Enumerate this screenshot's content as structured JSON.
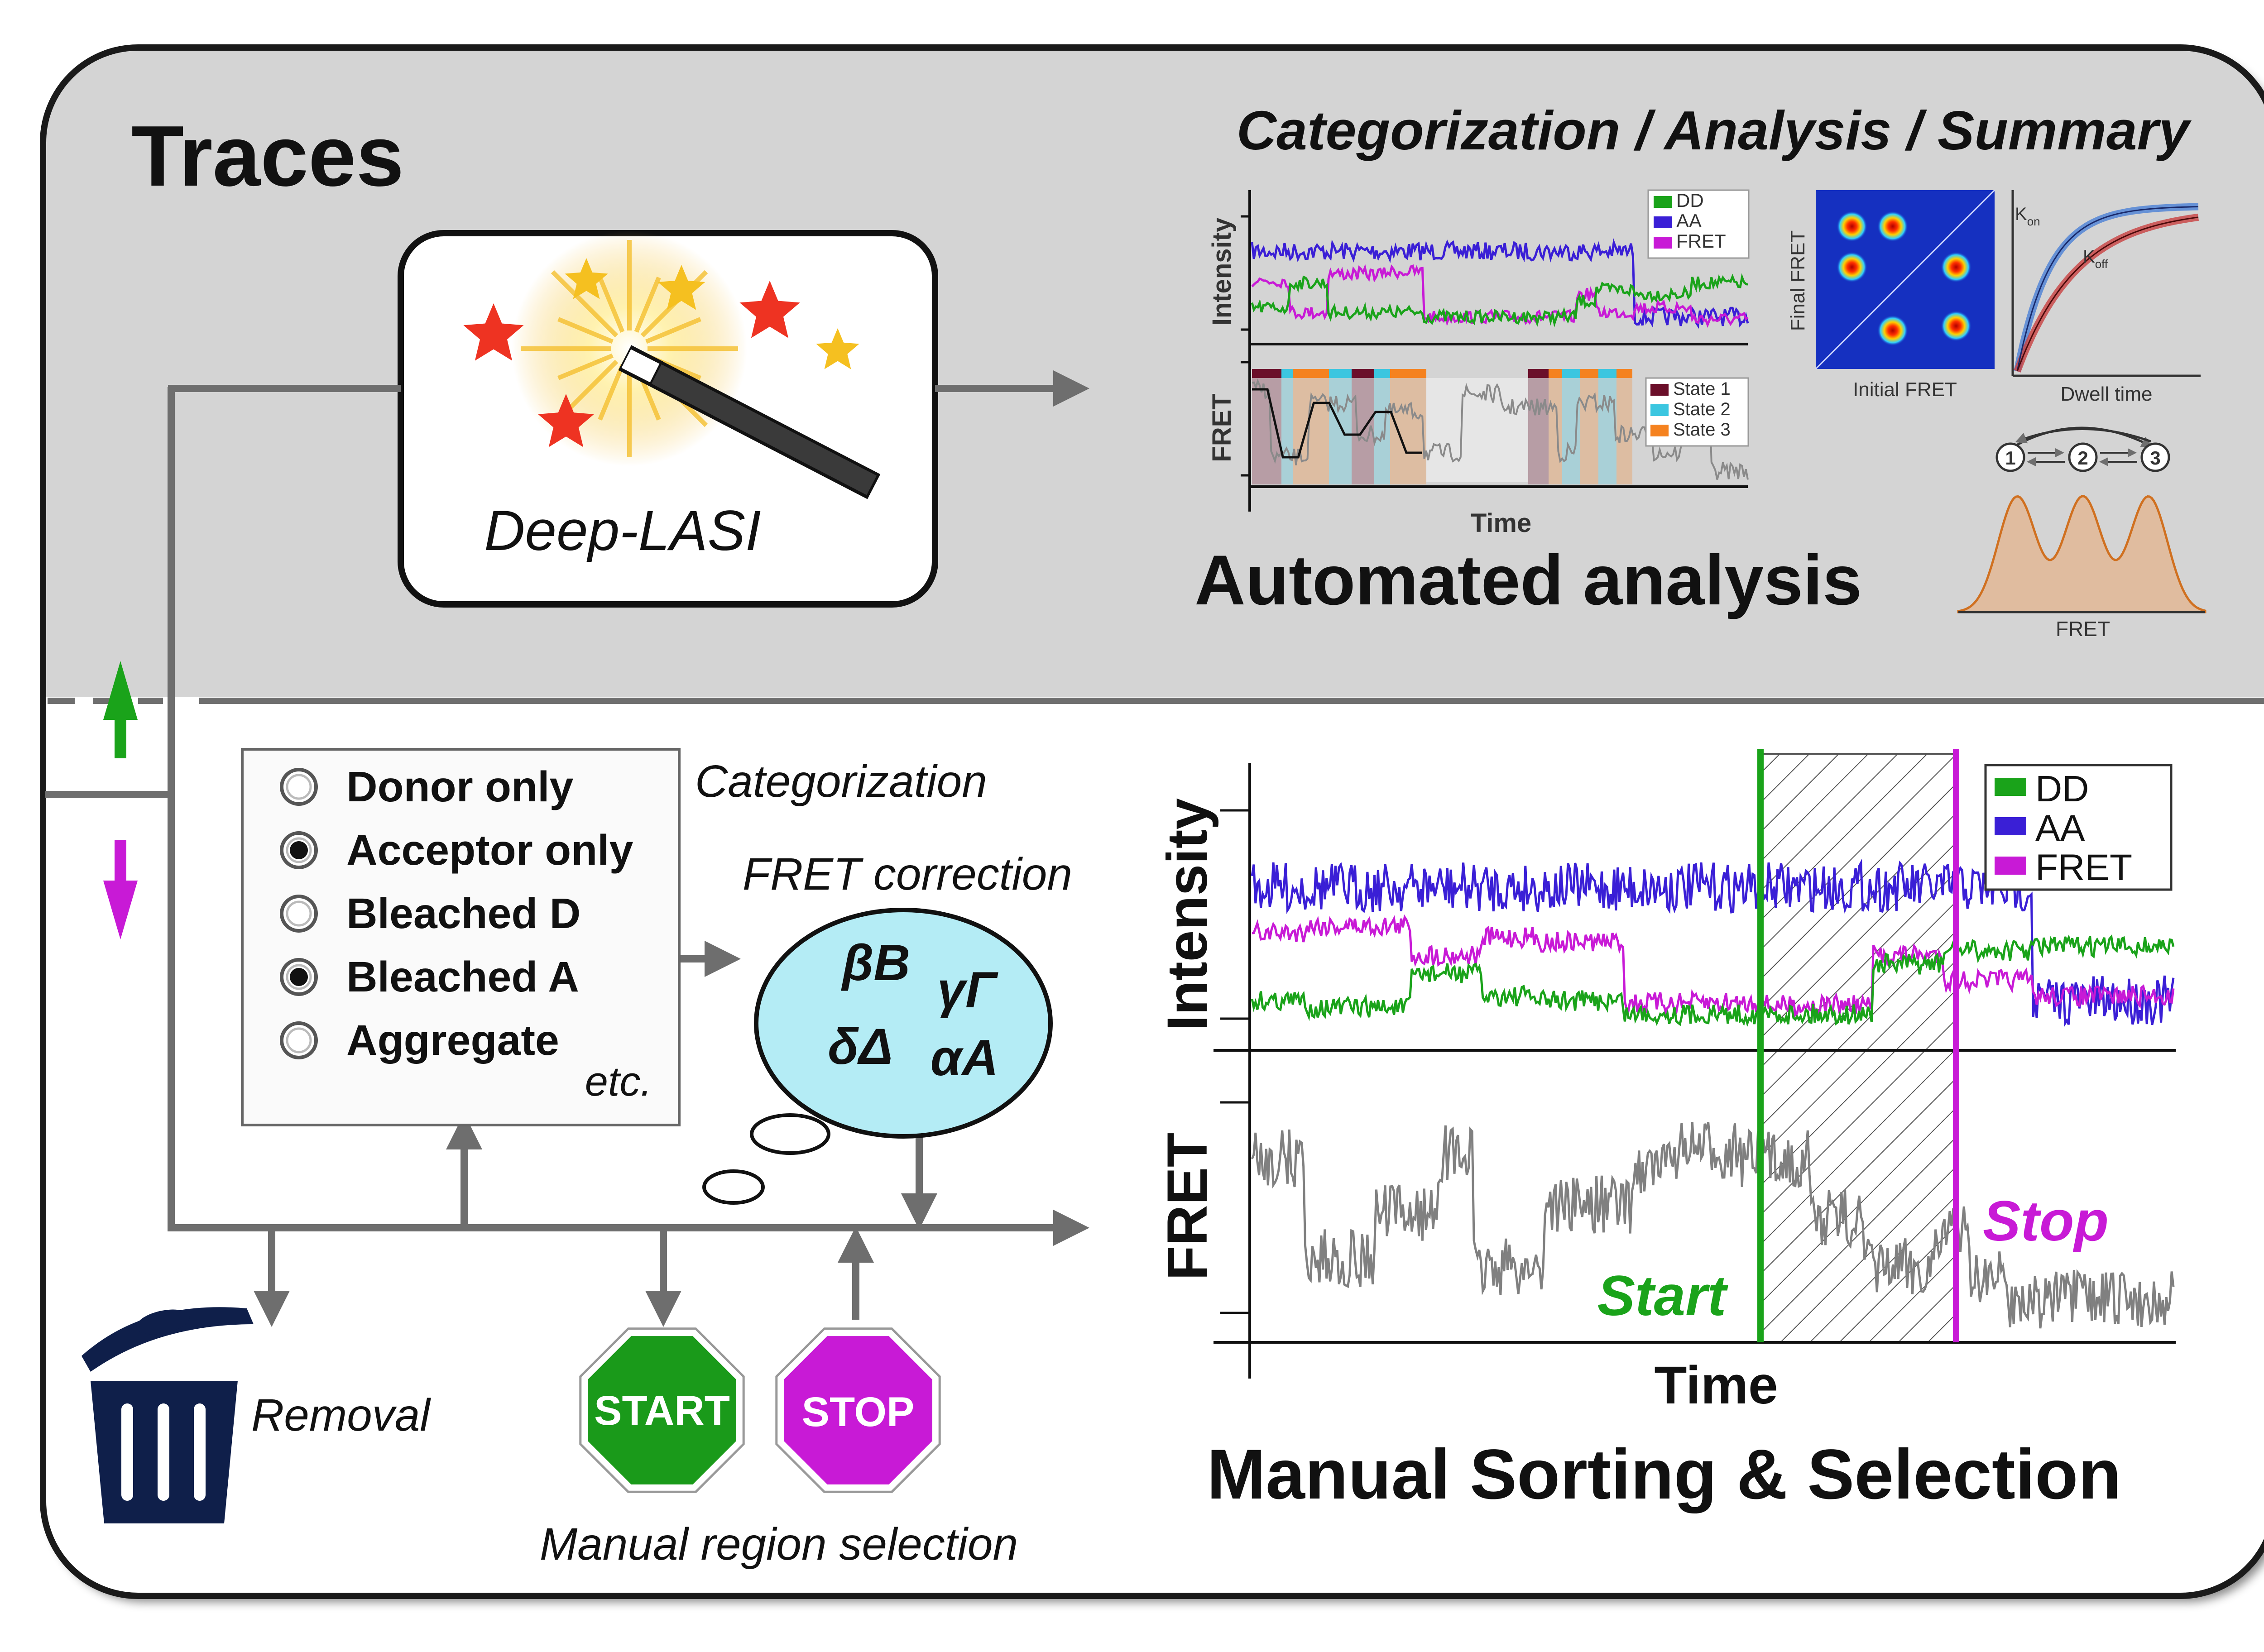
{
  "colors": {
    "top_panel": "#d4d4d4",
    "frame": "#1a1a1a",
    "arrow": "#6e6e6e",
    "dd": "#1aa31a",
    "aa": "#3a1fd6",
    "fret_channel": "#c81ad6",
    "fret_gray": "#808080",
    "state1": "#6b0f2a",
    "state2": "#3bc6e0",
    "state3": "#f5821f",
    "correction_bubble": "#b4ecf5",
    "start_sign": "#1a9a1a",
    "stop_sign": "#c81ad6",
    "trash": "#0f1f4a",
    "arrow_up": "#1aa31a",
    "arrow_down": "#c81ad6",
    "kon_curve": "#4a7fd6",
    "koff_curve": "#c84040",
    "histogram": "#f0a060"
  },
  "top": {
    "title": "Traces",
    "header": "Categorization / Analysis / Summary",
    "deep_lasi_label": "Deep-LASI",
    "icon": "magic-wand-icon",
    "section_title": "Automated analysis",
    "small_trace": {
      "intensity_label": "Intensity",
      "fret_label": "FRET",
      "time_label": "Time",
      "legend": [
        "DD",
        "AA",
        "FRET"
      ],
      "state_legend": [
        "State 1",
        "State 2",
        "State 3"
      ]
    },
    "tdp": {
      "ylabel": "Final FRET",
      "xlabel": "Initial FRET"
    },
    "dwell": {
      "xlabel": "Dwell time",
      "kon_main": "K",
      "kon_sub": "on",
      "koff_main": "K",
      "koff_sub": "off"
    },
    "kinetic_scheme": [
      "1",
      "2",
      "3"
    ],
    "histogram_xlabel": "FRET"
  },
  "bottom": {
    "categories": [
      {
        "label": "Donor only",
        "selected": false
      },
      {
        "label": "Acceptor only",
        "selected": true
      },
      {
        "label": "Bleached D",
        "selected": false
      },
      {
        "label": "Bleached A",
        "selected": true
      },
      {
        "label": "Aggregate",
        "selected": false
      }
    ],
    "categories_etc": "etc.",
    "categorization_label": "Categorization",
    "fret_correction_label": "FRET correction",
    "correction_factors": [
      "βB",
      "γΓ",
      "δΔ",
      "αA"
    ],
    "removal_label": "Removal",
    "start_sign": "START",
    "stop_sign": "STOP",
    "manual_region_label": "Manual region selection",
    "section_title": "Manual Sorting & Selection",
    "big_trace": {
      "intensity_label": "Intensity",
      "fret_label": "FRET",
      "time_label": "Time",
      "legend": [
        "DD",
        "AA",
        "FRET"
      ],
      "start_label": "Start",
      "stop_label": "Stop"
    },
    "icons": [
      "trash-icon",
      "up-arrow-icon",
      "down-arrow-icon"
    ]
  }
}
